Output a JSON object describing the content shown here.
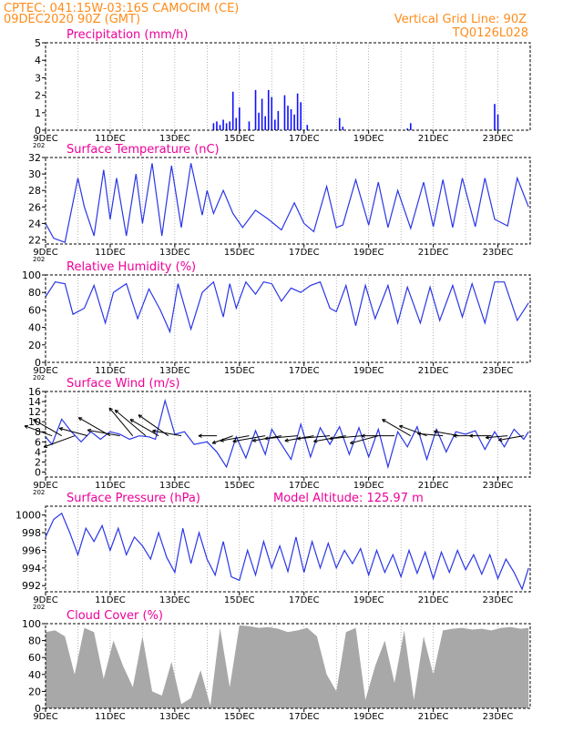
{
  "header": {
    "line1": "CPTEC:   041:15W-03:16S   CAMOCIM (CE)",
    "line2": "09DEC2020 90Z (GMT)",
    "right1": "Vertical Grid Line: 90Z",
    "right2": "TQ0126L028"
  },
  "colors": {
    "header": "#ff8c1a",
    "panel_title": "#ee0099",
    "series_blue": "#2a36e6",
    "precip_blue": "#1010ff",
    "cloud_gray": "#a8a8a8",
    "wind_arrow": "#000000",
    "grid": "#888888"
  },
  "x_axis": {
    "day_min": 9,
    "day_max": 24,
    "tick_labels": [
      "9DEC",
      "11DEC",
      "13DEC",
      "15DEC",
      "17DEC",
      "19DEC",
      "21DEC",
      "23DEC"
    ],
    "tick_days": [
      9,
      11,
      13,
      15,
      17,
      19,
      21,
      23
    ],
    "year_fragment": "202"
  },
  "chart_data": [
    {
      "type": "bar",
      "title": "Precipitation (mm/h)",
      "ylim": [
        0,
        5
      ],
      "yticks": [
        0,
        1,
        2,
        3,
        4,
        5
      ],
      "grid": true,
      "x": [
        14.2,
        14.3,
        14.4,
        14.5,
        14.6,
        14.7,
        14.8,
        14.9,
        15.0,
        15.3,
        15.5,
        15.6,
        15.7,
        15.8,
        15.9,
        16.0,
        16.1,
        16.2,
        16.4,
        16.5,
        16.6,
        16.7,
        16.8,
        16.9,
        17.1,
        18.1,
        18.2,
        20.2,
        20.3,
        22.9,
        23.0
      ],
      "values": [
        0.4,
        0.5,
        0.3,
        0.6,
        0.4,
        0.5,
        2.2,
        0.7,
        1.3,
        0.5,
        2.3,
        1.0,
        1.8,
        0.8,
        2.3,
        1.9,
        0.6,
        1.1,
        2.0,
        1.4,
        1.2,
        0.9,
        2.1,
        1.6,
        0.3,
        0.7,
        0.2,
        0.1,
        0.4,
        1.5,
        0.9
      ]
    },
    {
      "type": "line",
      "title": "Surface Temperature (nC)",
      "ylim": [
        21.5,
        32
      ],
      "yticks": [
        22,
        24,
        26,
        28,
        30,
        32
      ],
      "grid": true,
      "x": [
        9.0,
        9.25,
        9.6,
        10.0,
        10.2,
        10.5,
        10.8,
        11.0,
        11.2,
        11.5,
        11.8,
        12.0,
        12.3,
        12.6,
        12.9,
        13.2,
        13.5,
        13.85,
        14.0,
        14.2,
        14.5,
        14.8,
        15.1,
        15.5,
        15.9,
        16.3,
        16.7,
        17.0,
        17.3,
        17.7,
        18.0,
        18.2,
        18.6,
        19.0,
        19.3,
        19.6,
        19.9,
        20.3,
        20.7,
        21.0,
        21.3,
        21.6,
        21.9,
        22.3,
        22.6,
        22.9,
        23.3,
        23.6,
        23.95
      ],
      "values": [
        24.0,
        22.2,
        21.7,
        29.5,
        26.0,
        22.5,
        30.5,
        24.5,
        29.5,
        22.5,
        30.0,
        24.0,
        31.3,
        22.5,
        31.0,
        23.5,
        31.3,
        25.0,
        28.0,
        25.2,
        28.0,
        25.2,
        23.5,
        25.6,
        24.5,
        23.2,
        26.5,
        24.0,
        23.0,
        28.5,
        23.5,
        23.8,
        29.3,
        23.8,
        29.0,
        23.5,
        28.0,
        23.4,
        29.0,
        23.6,
        29.3,
        23.5,
        29.5,
        23.6,
        29.5,
        24.5,
        23.7,
        29.5,
        26.0
      ]
    },
    {
      "type": "line",
      "title": "Relative Humidity (%)",
      "ylim": [
        0,
        100
      ],
      "yticks": [
        0,
        20,
        40,
        60,
        80,
        100
      ],
      "grid": true,
      "x": [
        9.0,
        9.3,
        9.6,
        9.85,
        10.2,
        10.5,
        10.85,
        11.1,
        11.5,
        11.85,
        12.2,
        12.55,
        12.85,
        13.1,
        13.5,
        13.85,
        14.2,
        14.5,
        14.7,
        14.9,
        15.2,
        15.5,
        15.75,
        16.0,
        16.3,
        16.6,
        16.9,
        17.2,
        17.5,
        17.8,
        18.0,
        18.3,
        18.6,
        18.9,
        19.2,
        19.6,
        19.9,
        20.2,
        20.6,
        20.9,
        21.2,
        21.6,
        21.9,
        22.2,
        22.6,
        22.9,
        23.2,
        23.6,
        23.95
      ],
      "values": [
        75,
        92,
        90,
        55,
        62,
        88,
        45,
        80,
        90,
        50,
        84,
        60,
        35,
        90,
        38,
        80,
        92,
        52,
        90,
        62,
        92,
        78,
        92,
        90,
        70,
        85,
        80,
        88,
        92,
        62,
        58,
        88,
        42,
        88,
        50,
        88,
        45,
        86,
        45,
        86,
        48,
        88,
        52,
        90,
        45,
        92,
        92,
        48,
        68
      ]
    },
    {
      "type": "line",
      "title": "Surface Wind (m/s)",
      "ylim": [
        -1,
        16
      ],
      "yticks": [
        0,
        2,
        4,
        6,
        8,
        10,
        12,
        14,
        16
      ],
      "grid": true,
      "x": [
        9.0,
        9.2,
        9.5,
        9.8,
        10.1,
        10.4,
        10.7,
        11.0,
        11.3,
        11.6,
        11.9,
        12.2,
        12.4,
        12.7,
        13.0,
        13.3,
        13.6,
        14.0,
        14.3,
        14.6,
        14.9,
        15.2,
        15.5,
        15.8,
        16.0,
        16.3,
        16.6,
        16.9,
        17.2,
        17.5,
        17.8,
        18.1,
        18.4,
        18.7,
        19.0,
        19.3,
        19.6,
        19.9,
        20.2,
        20.5,
        20.8,
        21.1,
        21.4,
        21.7,
        22.0,
        22.3,
        22.6,
        22.9,
        23.2,
        23.5,
        23.8,
        23.95
      ],
      "values": [
        7,
        5.5,
        10.5,
        8.0,
        6.0,
        8.0,
        6.5,
        8.0,
        7.5,
        6.5,
        7.2,
        7.0,
        6.5,
        14.2,
        7.5,
        8.0,
        5.5,
        6.0,
        4.0,
        1.0,
        7.0,
        2.8,
        8.2,
        3.5,
        8.5,
        5.5,
        2.5,
        9.5,
        3.0,
        8.8,
        5.5,
        9.0,
        3.5,
        8.8,
        3.0,
        8.5,
        1.0,
        8.0,
        5.0,
        9.0,
        2.5,
        8.5,
        4.0,
        8.0,
        7.5,
        8.2,
        4.5,
        8.0,
        5.0,
        8.5,
        6.5,
        8.0
      ]
    },
    {
      "type": "line",
      "title": "Surface Pressure (hPa)",
      "annotation": "Model Altitude: 125.97 m",
      "ylim": [
        991.3,
        1001
      ],
      "yticks": [
        992,
        994,
        996,
        998,
        1000
      ],
      "grid": true,
      "x": [
        9.0,
        9.25,
        9.5,
        9.75,
        10.0,
        10.25,
        10.5,
        10.75,
        11.0,
        11.25,
        11.5,
        11.75,
        12.0,
        12.25,
        12.5,
        12.75,
        13.0,
        13.25,
        13.5,
        13.75,
        14.0,
        14.25,
        14.5,
        14.75,
        15.0,
        15.25,
        15.5,
        15.75,
        16.0,
        16.25,
        16.5,
        16.75,
        17.0,
        17.25,
        17.5,
        17.75,
        18.0,
        18.25,
        18.5,
        18.75,
        19.0,
        19.25,
        19.5,
        19.75,
        20.0,
        20.25,
        20.5,
        20.75,
        21.0,
        21.25,
        21.5,
        21.75,
        22.0,
        22.25,
        22.5,
        22.75,
        23.0,
        23.25,
        23.5,
        23.75,
        23.95
      ],
      "values": [
        997.5,
        999.5,
        1000.2,
        998.0,
        995.5,
        998.5,
        997.0,
        998.8,
        996.0,
        998.5,
        995.5,
        997.5,
        996.5,
        995.0,
        998.0,
        995.2,
        993.5,
        998.5,
        994.5,
        998.0,
        995.0,
        993.2,
        997.0,
        993.0,
        992.6,
        996.0,
        993.2,
        997.0,
        994.0,
        996.5,
        993.6,
        997.5,
        993.5,
        997.0,
        994.0,
        996.8,
        994.0,
        996.0,
        994.5,
        996.2,
        993.2,
        996.0,
        993.5,
        995.5,
        993.0,
        996.0,
        993.4,
        995.8,
        992.8,
        995.8,
        993.5,
        996.0,
        993.8,
        995.5,
        993.3,
        995.5,
        992.8,
        995.0,
        993.5,
        991.6,
        994.0
      ]
    },
    {
      "type": "area",
      "title": "Cloud Cover (%)",
      "ylim": [
        0,
        100
      ],
      "yticks": [
        0,
        20,
        40,
        60,
        80,
        100
      ],
      "grid": true,
      "x": [
        9.0,
        9.3,
        9.6,
        9.9,
        10.2,
        10.5,
        10.8,
        11.1,
        11.4,
        11.7,
        12.0,
        12.3,
        12.6,
        12.9,
        13.2,
        13.5,
        13.8,
        14.1,
        14.4,
        14.7,
        15.0,
        15.3,
        15.6,
        15.9,
        16.2,
        16.5,
        16.8,
        17.1,
        17.4,
        17.7,
        18.0,
        18.3,
        18.6,
        18.9,
        19.2,
        19.5,
        19.8,
        20.1,
        20.4,
        20.7,
        21.0,
        21.3,
        21.6,
        21.9,
        22.2,
        22.5,
        22.8,
        23.1,
        23.4,
        23.7,
        23.95
      ],
      "values": [
        90,
        92,
        85,
        40,
        95,
        90,
        35,
        80,
        50,
        25,
        85,
        20,
        15,
        55,
        5,
        12,
        45,
        3,
        95,
        25,
        98,
        97,
        95,
        96,
        94,
        90,
        92,
        95,
        85,
        40,
        20,
        90,
        95,
        10,
        50,
        80,
        30,
        92,
        10,
        85,
        40,
        92,
        94,
        95,
        93,
        94,
        92,
        95,
        96,
        94,
        95
      ]
    }
  ],
  "wind_arrows": {
    "description_free": true,
    "x": [
      9.2,
      9.5,
      9.9,
      10.3,
      11.0,
      11.3,
      11.7,
      12.1,
      12.5,
      12.8,
      13.2,
      14.3,
      14.8,
      15.3,
      15.8,
      16.3,
      16.8,
      17.3,
      17.8,
      18.3,
      18.8,
      19.3,
      19.8,
      20.3,
      20.8,
      21.3,
      21.8,
      22.3,
      22.8,
      23.3,
      23.8
    ],
    "angle_deg": [
      160,
      150,
      200,
      165,
      150,
      170,
      130,
      140,
      150,
      145,
      170,
      180,
      200,
      190,
      190,
      190,
      185,
      190,
      185,
      190,
      185,
      195,
      180,
      150,
      160,
      175,
      170,
      180,
      180,
      185,
      190
    ],
    "length": [
      8,
      9,
      9,
      8,
      10,
      9,
      10,
      11,
      9,
      10,
      8,
      5,
      6,
      8,
      9,
      8,
      9,
      8,
      9,
      9,
      9,
      8,
      9,
      9,
      8,
      7,
      7,
      6,
      6,
      6,
      7
    ]
  }
}
